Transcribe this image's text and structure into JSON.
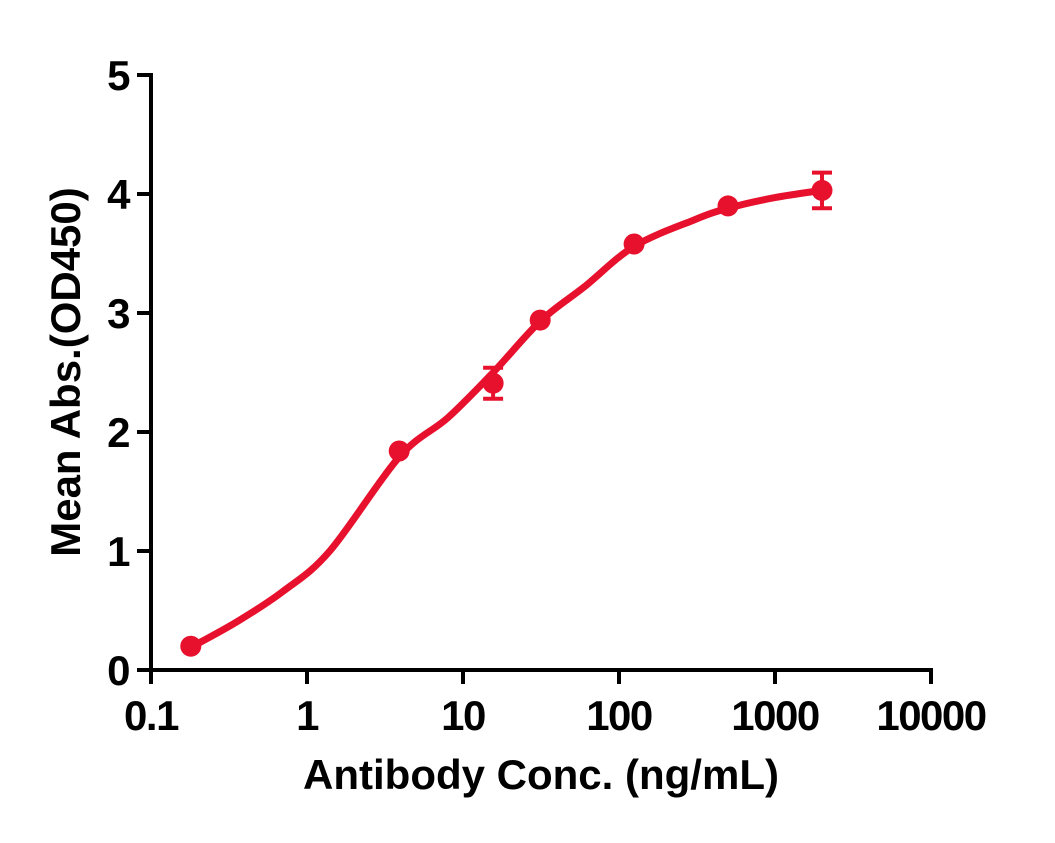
{
  "figure": {
    "background": "#ffffff",
    "axis_color": "#000000"
  },
  "chart_data": {
    "type": "scatter",
    "title": "",
    "xlabel": "Antibody Conc. (ng/mL)",
    "ylabel": "Mean Abs.(OD450)",
    "x_scale": "log10",
    "xlim": [
      0.1,
      10000
    ],
    "ylim": [
      0,
      5
    ],
    "x_ticks": [
      0.1,
      1,
      10,
      100,
      1000,
      10000
    ],
    "x_tick_labels": [
      "0.1",
      "1",
      "10",
      "100",
      "1000",
      "10000"
    ],
    "y_ticks": [
      0,
      1,
      2,
      3,
      4,
      5
    ],
    "y_tick_labels": [
      "0",
      "1",
      "2",
      "3",
      "4",
      "5"
    ],
    "grid": false,
    "legend": false,
    "series": [
      {
        "color": "#e8112d",
        "marker": "circle",
        "points": [
          {
            "x": 0.18,
            "y": 0.2,
            "err": 0
          },
          {
            "x": 3.9,
            "y": 1.84,
            "err": 0
          },
          {
            "x": 15.6,
            "y": 2.41,
            "err": 0.13
          },
          {
            "x": 31.25,
            "y": 2.94,
            "err": 0
          },
          {
            "x": 125,
            "y": 3.58,
            "err": 0
          },
          {
            "x": 500,
            "y": 3.9,
            "err": 0
          },
          {
            "x": 2000,
            "y": 4.03,
            "err": 0.15
          }
        ],
        "fit_curve": [
          [
            0.18,
            0.19
          ],
          [
            0.35,
            0.4
          ],
          [
            0.7,
            0.66
          ],
          [
            1.4,
            1.0
          ],
          [
            3.9,
            1.79
          ],
          [
            8,
            2.12
          ],
          [
            15.6,
            2.5
          ],
          [
            31.25,
            2.93
          ],
          [
            60,
            3.22
          ],
          [
            125,
            3.56
          ],
          [
            300,
            3.78
          ],
          [
            500,
            3.88
          ],
          [
            1000,
            3.97
          ],
          [
            2000,
            4.03
          ]
        ]
      }
    ]
  }
}
